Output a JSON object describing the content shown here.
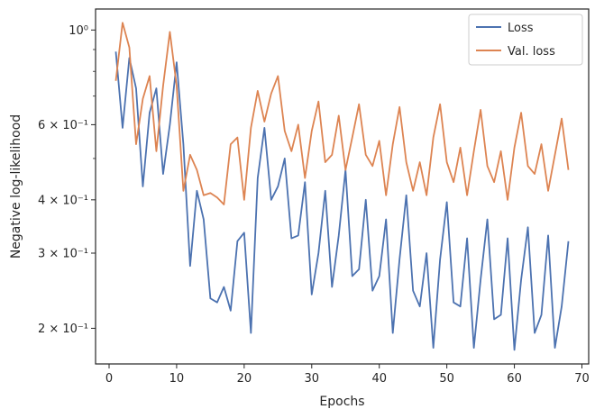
{
  "chart_data": {
    "type": "line",
    "title": "",
    "xlabel": "Epochs",
    "ylabel": "Negative log-likelihood",
    "yscale": "log",
    "xlim": [
      -2,
      71
    ],
    "ylim": [
      0.165,
      1.12
    ],
    "xticks": [
      0,
      10,
      20,
      30,
      40,
      50,
      60,
      70
    ],
    "xtick_labels": [
      "0",
      "10",
      "20",
      "30",
      "40",
      "50",
      "60",
      "70"
    ],
    "yticks_major": [
      0.2,
      0.3,
      0.4,
      0.6,
      1.0
    ],
    "ytick_labels": [
      "2 × 10⁻¹",
      "3 × 10⁻¹",
      "4 × 10⁻¹",
      "6 × 10⁻¹",
      "10⁰"
    ],
    "yticks_minor": [
      0.5,
      0.7,
      0.8,
      0.9
    ],
    "grid": false,
    "legend_position": "top-right",
    "x": [
      1,
      2,
      3,
      4,
      5,
      6,
      7,
      8,
      9,
      10,
      11,
      12,
      13,
      14,
      15,
      16,
      17,
      18,
      19,
      20,
      21,
      22,
      23,
      24,
      25,
      26,
      27,
      28,
      29,
      30,
      31,
      32,
      33,
      34,
      35,
      36,
      37,
      38,
      39,
      40,
      41,
      42,
      43,
      44,
      45,
      46,
      47,
      48,
      49,
      50,
      51,
      52,
      53,
      54,
      55,
      56,
      57,
      58,
      59,
      60,
      61,
      62,
      63,
      64,
      65,
      66,
      67,
      68
    ],
    "series": [
      {
        "name": "Loss",
        "color": "#4c72b0",
        "values": [
          0.89,
          0.59,
          0.86,
          0.73,
          0.43,
          0.64,
          0.73,
          0.46,
          0.6,
          0.84,
          0.54,
          0.28,
          0.42,
          0.36,
          0.235,
          0.23,
          0.25,
          0.22,
          0.32,
          0.335,
          0.195,
          0.45,
          0.59,
          0.4,
          0.43,
          0.5,
          0.325,
          0.33,
          0.44,
          0.24,
          0.3,
          0.42,
          0.25,
          0.33,
          0.47,
          0.265,
          0.275,
          0.4,
          0.245,
          0.265,
          0.36,
          0.195,
          0.29,
          0.41,
          0.245,
          0.225,
          0.3,
          0.18,
          0.29,
          0.395,
          0.23,
          0.225,
          0.325,
          0.18,
          0.26,
          0.36,
          0.21,
          0.215,
          0.325,
          0.178,
          0.26,
          0.345,
          0.195,
          0.215,
          0.33,
          0.18,
          0.225,
          0.32
        ]
      },
      {
        "name": "Val. loss",
        "color": "#dd8452",
        "values": [
          0.76,
          1.04,
          0.91,
          0.54,
          0.69,
          0.78,
          0.52,
          0.74,
          0.99,
          0.74,
          0.42,
          0.51,
          0.47,
          0.41,
          0.415,
          0.405,
          0.39,
          0.54,
          0.56,
          0.4,
          0.59,
          0.72,
          0.61,
          0.71,
          0.78,
          0.58,
          0.52,
          0.6,
          0.45,
          0.58,
          0.68,
          0.49,
          0.51,
          0.63,
          0.47,
          0.56,
          0.67,
          0.51,
          0.48,
          0.55,
          0.41,
          0.54,
          0.66,
          0.49,
          0.42,
          0.49,
          0.41,
          0.56,
          0.67,
          0.49,
          0.44,
          0.53,
          0.41,
          0.52,
          0.65,
          0.48,
          0.44,
          0.52,
          0.4,
          0.53,
          0.64,
          0.48,
          0.46,
          0.54,
          0.42,
          0.51,
          0.62,
          0.47
        ]
      }
    ]
  }
}
